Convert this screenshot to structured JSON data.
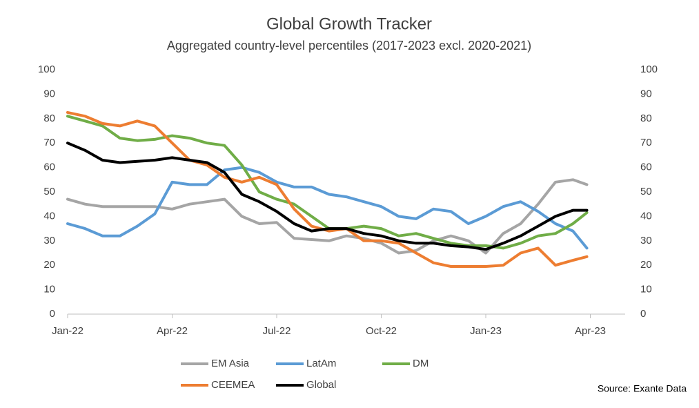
{
  "chart_data": {
    "type": "line",
    "title": "Global Growth Tracker",
    "subtitle": "Aggregated country-level percentiles (2017-2023 excl. 2020-2021)",
    "source": "Source: Exante Data",
    "x": [
      0,
      0.5,
      1,
      1.5,
      2,
      2.5,
      3,
      3.5,
      4,
      4.5,
      5,
      5.5,
      6,
      6.5,
      7,
      7.5,
      8,
      8.5,
      9,
      9.5,
      10,
      10.5,
      11,
      11.5,
      12,
      12.5,
      13,
      13.5,
      14,
      14.5,
      14.9
    ],
    "xlim": [
      0,
      16
    ],
    "xticks": [
      {
        "value": 0,
        "label": "Jan-22"
      },
      {
        "value": 3,
        "label": "Apr-22"
      },
      {
        "value": 6,
        "label": "Jul-22"
      },
      {
        "value": 9,
        "label": "Oct-22"
      },
      {
        "value": 12,
        "label": "Jan-23"
      },
      {
        "value": 15,
        "label": "Apr-23"
      }
    ],
    "ylim": [
      0,
      100
    ],
    "yticks": [
      0,
      10,
      20,
      30,
      40,
      50,
      60,
      70,
      80,
      90,
      100
    ],
    "grid": false,
    "legend": "bottom",
    "series": [
      {
        "name": "EM Asia",
        "color": "#a5a5a5",
        "values": [
          47,
          45,
          44,
          44,
          44,
          44,
          43,
          45,
          46,
          47,
          40,
          37,
          37.5,
          31,
          30.5,
          30,
          32,
          31,
          29,
          25,
          26,
          30,
          32,
          30,
          25,
          33,
          37,
          45,
          54,
          55,
          53
        ]
      },
      {
        "name": "LatAm",
        "color": "#5b9bd5",
        "values": [
          37,
          35,
          32,
          32,
          36,
          41,
          54,
          53,
          53,
          59,
          60,
          58,
          54,
          52,
          52,
          49,
          48,
          46,
          44,
          40,
          39,
          43,
          42,
          37,
          40,
          44,
          46,
          42,
          37,
          34,
          27
        ]
      },
      {
        "name": "DM",
        "color": "#70ad47",
        "values": [
          81,
          79,
          77,
          72,
          71,
          71.5,
          73,
          72,
          70,
          69,
          61,
          50,
          47,
          45,
          40,
          35,
          35,
          36,
          35,
          32,
          33,
          31,
          29,
          28,
          28,
          27,
          29,
          32,
          33,
          37,
          41.5
        ]
      },
      {
        "name": "CEEMEA",
        "color": "#ed7d31",
        "values": [
          82.5,
          81,
          78,
          77,
          79,
          77,
          70,
          63,
          61,
          56,
          54,
          56,
          53,
          43,
          36,
          34,
          35,
          30,
          30,
          29,
          25,
          21,
          19.5,
          19.5,
          19.5,
          20,
          25,
          27,
          20,
          22,
          23.5
        ]
      },
      {
        "name": "Global",
        "color": "#000000",
        "values": [
          70,
          67,
          63,
          62,
          62.5,
          63,
          64,
          63,
          62,
          58,
          49,
          46,
          42,
          37,
          34,
          35,
          35,
          33,
          32,
          30,
          29,
          29,
          28,
          27.5,
          26.5,
          29,
          32,
          36,
          40,
          42.5,
          42.5
        ]
      }
    ]
  }
}
